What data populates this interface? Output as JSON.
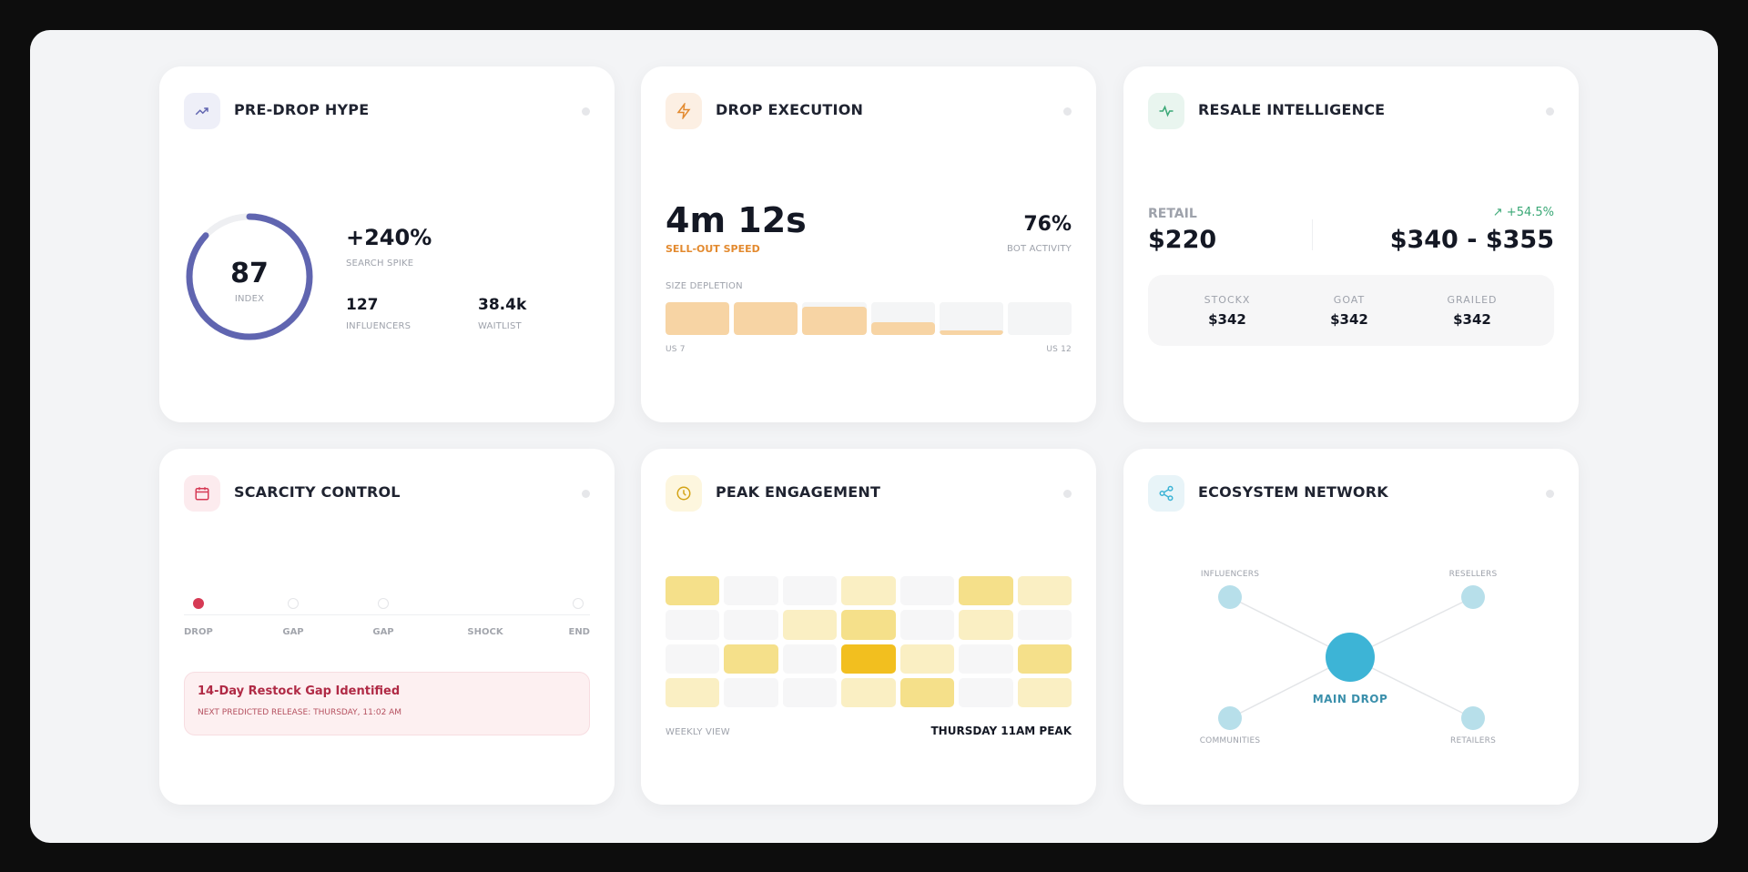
{
  "colors": {
    "hype": "#6065b0",
    "execution": "#e38a2f",
    "resale_up": "#3aa876",
    "scarcity": "#d63a55",
    "peak": "#f2bf1f",
    "network": "#3db4d6"
  },
  "pre_drop_hype": {
    "title": "PRE-DROP HYPE",
    "icon": "trending-up-icon",
    "index_value": "87",
    "index_label": "INDEX",
    "index_fraction": 0.87,
    "spike_value": "+240%",
    "spike_label": "SEARCH SPIKE",
    "influencers_value": "127",
    "influencers_label": "INFLUENCERS",
    "waitlist_value": "38.4k",
    "waitlist_label": "WAITLIST"
  },
  "drop_execution": {
    "title": "DROP EXECUTION",
    "icon": "lightning-icon",
    "speed_value": "4m 12s",
    "speed_label": "SELL-OUT SPEED",
    "bot_value": "76%",
    "bot_label": "BOT ACTIVITY",
    "depletion_label": "SIZE DEPLETION",
    "depletion_levels": [
      1,
      1,
      0.85,
      0.4,
      0.15,
      0
    ],
    "start_label": "US 7",
    "end_label": "US 12"
  },
  "resale": {
    "title": "RESALE INTELLIGENCE",
    "icon": "activity-icon",
    "retail_label": "RETAIL",
    "retail_value": "$220",
    "change": "+54.5%",
    "range": "$340 - $355",
    "markets": [
      {
        "name": "STOCKX",
        "price": "$342"
      },
      {
        "name": "GOAT",
        "price": "$342"
      },
      {
        "name": "GRAILED",
        "price": "$342"
      }
    ]
  },
  "scarcity": {
    "title": "SCARCITY CONTROL",
    "icon": "calendar-icon",
    "steps": [
      {
        "label": "DROP",
        "active": true
      },
      {
        "label": "GAP",
        "active": false
      },
      {
        "label": "GAP",
        "active": false
      },
      {
        "label": "SHOCK",
        "active": false
      },
      {
        "label": "END",
        "active": false
      }
    ],
    "alert_title": "14-Day Restock Gap Identified",
    "alert_sub": "NEXT PREDICTED RELEASE: THURSDAY, 11:02 AM"
  },
  "peak": {
    "title": "PEAK ENGAGEMENT",
    "icon": "clock-icon",
    "heat": [
      [
        2,
        0,
        0,
        1,
        0,
        2,
        1
      ],
      [
        0,
        0,
        1,
        2,
        0,
        1,
        0
      ],
      [
        0,
        2,
        0,
        3,
        1,
        0,
        2
      ],
      [
        1,
        0,
        0,
        1,
        2,
        0,
        1
      ]
    ],
    "footer_left": "WEEKLY VIEW",
    "footer_right": "THURSDAY 11AM PEAK"
  },
  "network": {
    "title": "ECOSYSTEM NETWORK",
    "icon": "share-icon",
    "center": "MAIN DROP",
    "nodes": [
      "INFLUENCERS",
      "RESELLERS",
      "COMMUNITIES",
      "RETAILERS"
    ]
  }
}
